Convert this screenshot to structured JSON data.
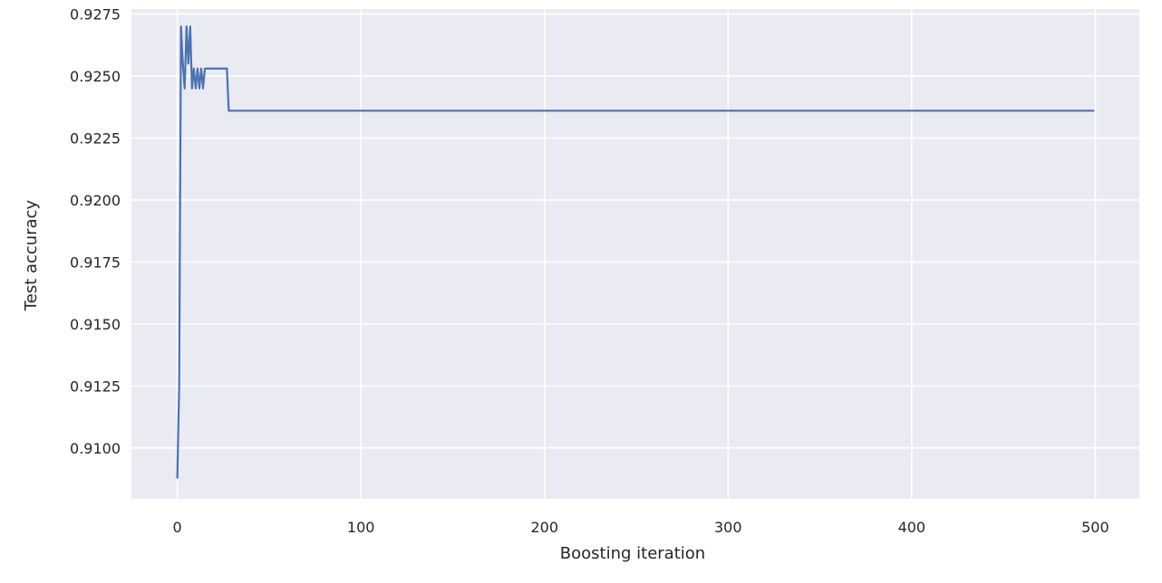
{
  "chart_data": {
    "type": "line",
    "title": "",
    "xlabel": "Boosting iteration",
    "ylabel": "Test accuracy",
    "xlim": [
      -25,
      524
    ],
    "ylim": [
      0.90795,
      0.9277
    ],
    "xticks": [
      0,
      100,
      200,
      300,
      400,
      500
    ],
    "xtick_labels": [
      "0",
      "100",
      "200",
      "300",
      "400",
      "500"
    ],
    "yticks": [
      0.91,
      0.9125,
      0.915,
      0.9175,
      0.92,
      0.9225,
      0.925,
      0.9275
    ],
    "ytick_labels": [
      "0.9100",
      "0.9125",
      "0.9150",
      "0.9175",
      "0.9200",
      "0.9225",
      "0.9250",
      "0.9275"
    ],
    "grid": true,
    "legend": false,
    "colors": {
      "background": "#eaeaf2",
      "grid": "#ffffff",
      "line": "#4c72b0"
    },
    "series": [
      {
        "x": [
          0,
          1,
          2,
          3,
          4,
          5,
          6,
          7,
          8,
          9,
          10,
          11,
          12,
          13,
          14,
          15,
          16,
          17,
          18,
          19,
          20,
          27,
          28,
          499
        ],
        "y": [
          0.9088,
          0.9125,
          0.927,
          0.9255,
          0.9245,
          0.927,
          0.9255,
          0.927,
          0.9245,
          0.9253,
          0.9245,
          0.9253,
          0.9245,
          0.9253,
          0.9245,
          0.9253,
          0.9253,
          0.9253,
          0.9253,
          0.9253,
          0.9253,
          0.9253,
          0.9236,
          0.9236
        ]
      }
    ]
  }
}
